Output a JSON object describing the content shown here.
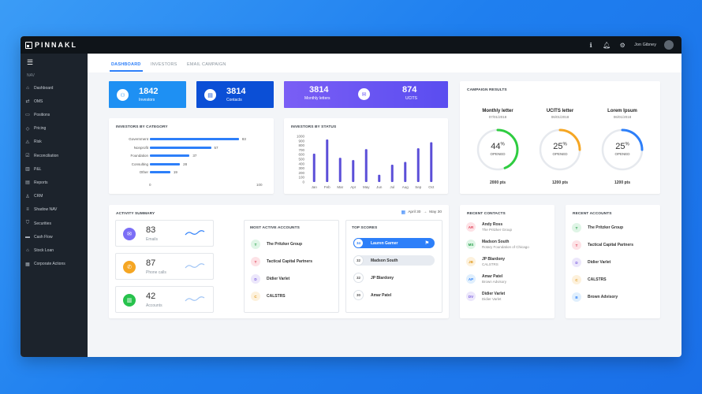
{
  "app": {
    "brand": "PINNAKL",
    "user": "Jon Gibney"
  },
  "sidebar": {
    "section_label": "NAV",
    "items": [
      {
        "label": "Dashboard",
        "icon": "home-icon"
      },
      {
        "label": "OMS",
        "icon": "swap-icon"
      },
      {
        "label": "Positions",
        "icon": "folder-icon"
      },
      {
        "label": "Pricing",
        "icon": "tag-icon"
      },
      {
        "label": "Risk",
        "icon": "warning-icon"
      },
      {
        "label": "Reconciliation",
        "icon": "check-square-icon"
      },
      {
        "label": "P&L",
        "icon": "chart-icon"
      },
      {
        "label": "Reports",
        "icon": "document-icon"
      },
      {
        "label": "CRM",
        "icon": "user-icon"
      },
      {
        "label": "Shadow NAV",
        "icon": "layers-icon"
      },
      {
        "label": "Securities",
        "icon": "shield-icon"
      },
      {
        "label": "Cash Flow",
        "icon": "cash-icon"
      },
      {
        "label": "Stock Loan",
        "icon": "stock-icon"
      },
      {
        "label": "Corporate Actions",
        "icon": "grid-icon"
      }
    ]
  },
  "tabs": [
    "DASHBOARD",
    "INVESTORS",
    "EMAIL CAMPAIGN"
  ],
  "stats": [
    {
      "value": "1842",
      "label": "Investors",
      "color": "#1e90f3"
    },
    {
      "value": "3814",
      "label": "Contacts",
      "color": "#0b4fd6"
    },
    {
      "value": "3814",
      "label": "Monthly letters",
      "color": "#6b57f4"
    },
    {
      "value": "874",
      "label": "UCITS",
      "color": "#6b57f4"
    }
  ],
  "investors_by_category": {
    "title": "INVESTORS BY CATEGORY",
    "x_ticks": [
      "0",
      "100"
    ],
    "chart_data": {
      "type": "bar",
      "categories": [
        "Government",
        "Nonprofit",
        "Foundation",
        "Consulting",
        "Other"
      ],
      "values": [
        83,
        57,
        37,
        28,
        19
      ],
      "xlim": [
        0,
        100
      ]
    }
  },
  "investors_by_status": {
    "title": "INVESTORS BY STATUS",
    "y_ticks": [
      "1000",
      "900",
      "800",
      "700",
      "600",
      "500",
      "400",
      "300",
      "200",
      "100",
      "0"
    ],
    "chart_data": {
      "type": "bar",
      "categories": [
        "Jan",
        "Feb",
        "Mar",
        "Apr",
        "May",
        "Jun",
        "Jul",
        "Aug",
        "Sep",
        "Oct"
      ],
      "values": [
        620,
        930,
        530,
        480,
        720,
        160,
        380,
        440,
        740,
        870
      ],
      "ylim": [
        0,
        1000
      ]
    }
  },
  "campaign": {
    "title": "CAMPAIGN RESULTS",
    "items": [
      {
        "title": "Monthly letter",
        "date": "07/01/2018",
        "pct": "44",
        "pct_value": 44,
        "sublabel": "OPENED",
        "pts": "2000 pts",
        "color": "#2ecc40"
      },
      {
        "title": "UCITS letter",
        "date": "06/01/2018",
        "pct": "25",
        "pct_value": 25,
        "sublabel": "OPENED",
        "pts": "1200 pts",
        "color": "#f5a623"
      },
      {
        "title": "Lorem Ipsum",
        "date": "06/01/2018",
        "pct": "25",
        "pct_value": 25,
        "sublabel": "OPENED",
        "pts": "1200 pts",
        "color": "#2d7ff9"
      }
    ]
  },
  "activity": {
    "title": "ACTIVITY SUMMARY",
    "date_from": "April 30",
    "date_to": "May 30",
    "items": [
      {
        "value": "83",
        "label": "Emails",
        "color": "#7b6ef6",
        "icon": "mail-icon"
      },
      {
        "value": "87",
        "label": "Phone calls",
        "color": "#f5a623",
        "icon": "phone-icon"
      },
      {
        "value": "42",
        "label": "Accounts",
        "color": "#27c24c",
        "icon": "bar-chart-icon"
      }
    ]
  },
  "most_active": {
    "title": "MOST ACTIVE ACCOUNTS",
    "items": [
      {
        "initial": "T",
        "name": "The Pritzker Group",
        "bg": "#dff5e6",
        "fg": "#27a04a"
      },
      {
        "initial": "T",
        "name": "Tactical Capital Partners",
        "bg": "#fde2e6",
        "fg": "#e0445a"
      },
      {
        "initial": "D",
        "name": "Didier Varlet",
        "bg": "#ece7fb",
        "fg": "#7b5fe0"
      },
      {
        "initial": "C",
        "name": "CALSTRS",
        "bg": "#fdf1dc",
        "fg": "#e09a1f"
      }
    ]
  },
  "top_scores": {
    "title": "TOP SCORES",
    "items": [
      {
        "score": "34",
        "name": "Lauren Garner"
      },
      {
        "score": "32",
        "name": "Madson South"
      },
      {
        "score": "32",
        "name": "JP Blardony"
      },
      {
        "score": "30",
        "name": "Amar Patel"
      }
    ]
  },
  "recent_contacts": {
    "title": "RECENT CONTACTS",
    "items": [
      {
        "initials": "AR",
        "name": "Andy Ross",
        "org": "The Pritzker Group",
        "bg": "#fde2e6",
        "fg": "#e0445a"
      },
      {
        "initials": "MS",
        "name": "Madson South",
        "org": "Rotary Foundation of Chicago",
        "bg": "#dff5e6",
        "fg": "#27a04a"
      },
      {
        "initials": "JB",
        "name": "JP Blardony",
        "org": "CALSTRS",
        "bg": "#fdf1dc",
        "fg": "#e09a1f"
      },
      {
        "initials": "AP",
        "name": "Amar Patel",
        "org": "Brown Advisory",
        "bg": "#e0effd",
        "fg": "#2d7ff9"
      },
      {
        "initials": "DV",
        "name": "Didier Varlet",
        "org": "Didier Varlet",
        "bg": "#ece7fb",
        "fg": "#7b5fe0"
      }
    ]
  },
  "recent_accounts": {
    "title": "RECENT ACCOUNTS",
    "items": [
      {
        "initial": "T",
        "name": "The Pritzker Group",
        "bg": "#dff5e6",
        "fg": "#27a04a"
      },
      {
        "initial": "T",
        "name": "Tactical Capital Partners",
        "bg": "#fde2e6",
        "fg": "#e0445a"
      },
      {
        "initial": "D",
        "name": "Didier Varlet",
        "bg": "#ece7fb",
        "fg": "#7b5fe0"
      },
      {
        "initial": "C",
        "name": "CALSTRS",
        "bg": "#fdf1dc",
        "fg": "#e09a1f"
      },
      {
        "initial": "B",
        "name": "Brown Advisory",
        "bg": "#e0effd",
        "fg": "#2d7ff9"
      }
    ]
  }
}
